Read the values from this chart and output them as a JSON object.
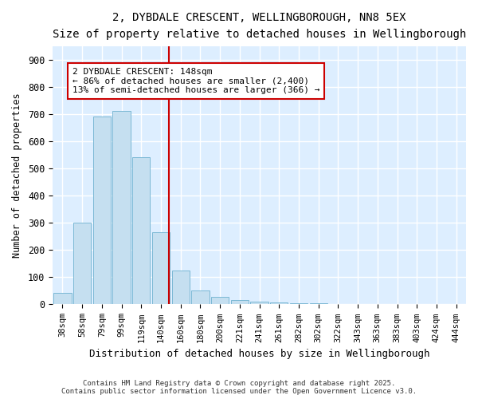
{
  "title_line1": "2, DYBDALE CRESCENT, WELLINGBOROUGH, NN8 5EX",
  "title_line2": "Size of property relative to detached houses in Wellingborough",
  "xlabel": "Distribution of detached houses by size in Wellingborough",
  "ylabel": "Number of detached properties",
  "categories": [
    "38sqm",
    "58sqm",
    "79sqm",
    "99sqm",
    "119sqm",
    "140sqm",
    "160sqm",
    "180sqm",
    "200sqm",
    "221sqm",
    "241sqm",
    "261sqm",
    "282sqm",
    "302sqm",
    "322sqm",
    "343sqm",
    "363sqm",
    "383sqm",
    "403sqm",
    "424sqm",
    "444sqm"
  ],
  "values": [
    42,
    300,
    690,
    710,
    540,
    265,
    125,
    52,
    28,
    16,
    10,
    7,
    5,
    3,
    2,
    2,
    2,
    1,
    1,
    1,
    1
  ],
  "bar_color": "#c5dff0",
  "bar_edge_color": "#7bb8d4",
  "vline_color": "#cc0000",
  "annotation_text": "2 DYBDALE CRESCENT: 148sqm\n← 86% of detached houses are smaller (2,400)\n13% of semi-detached houses are larger (366) →",
  "annotation_box_color": "#cc0000",
  "ylim": [
    0,
    950
  ],
  "yticks": [
    0,
    100,
    200,
    300,
    400,
    500,
    600,
    700,
    800,
    900
  ],
  "background_color": "#ddeeff",
  "grid_color": "#ffffff",
  "fig_background": "#ffffff",
  "footer_line1": "Contains HM Land Registry data © Crown copyright and database right 2025.",
  "footer_line2": "Contains public sector information licensed under the Open Government Licence v3.0."
}
